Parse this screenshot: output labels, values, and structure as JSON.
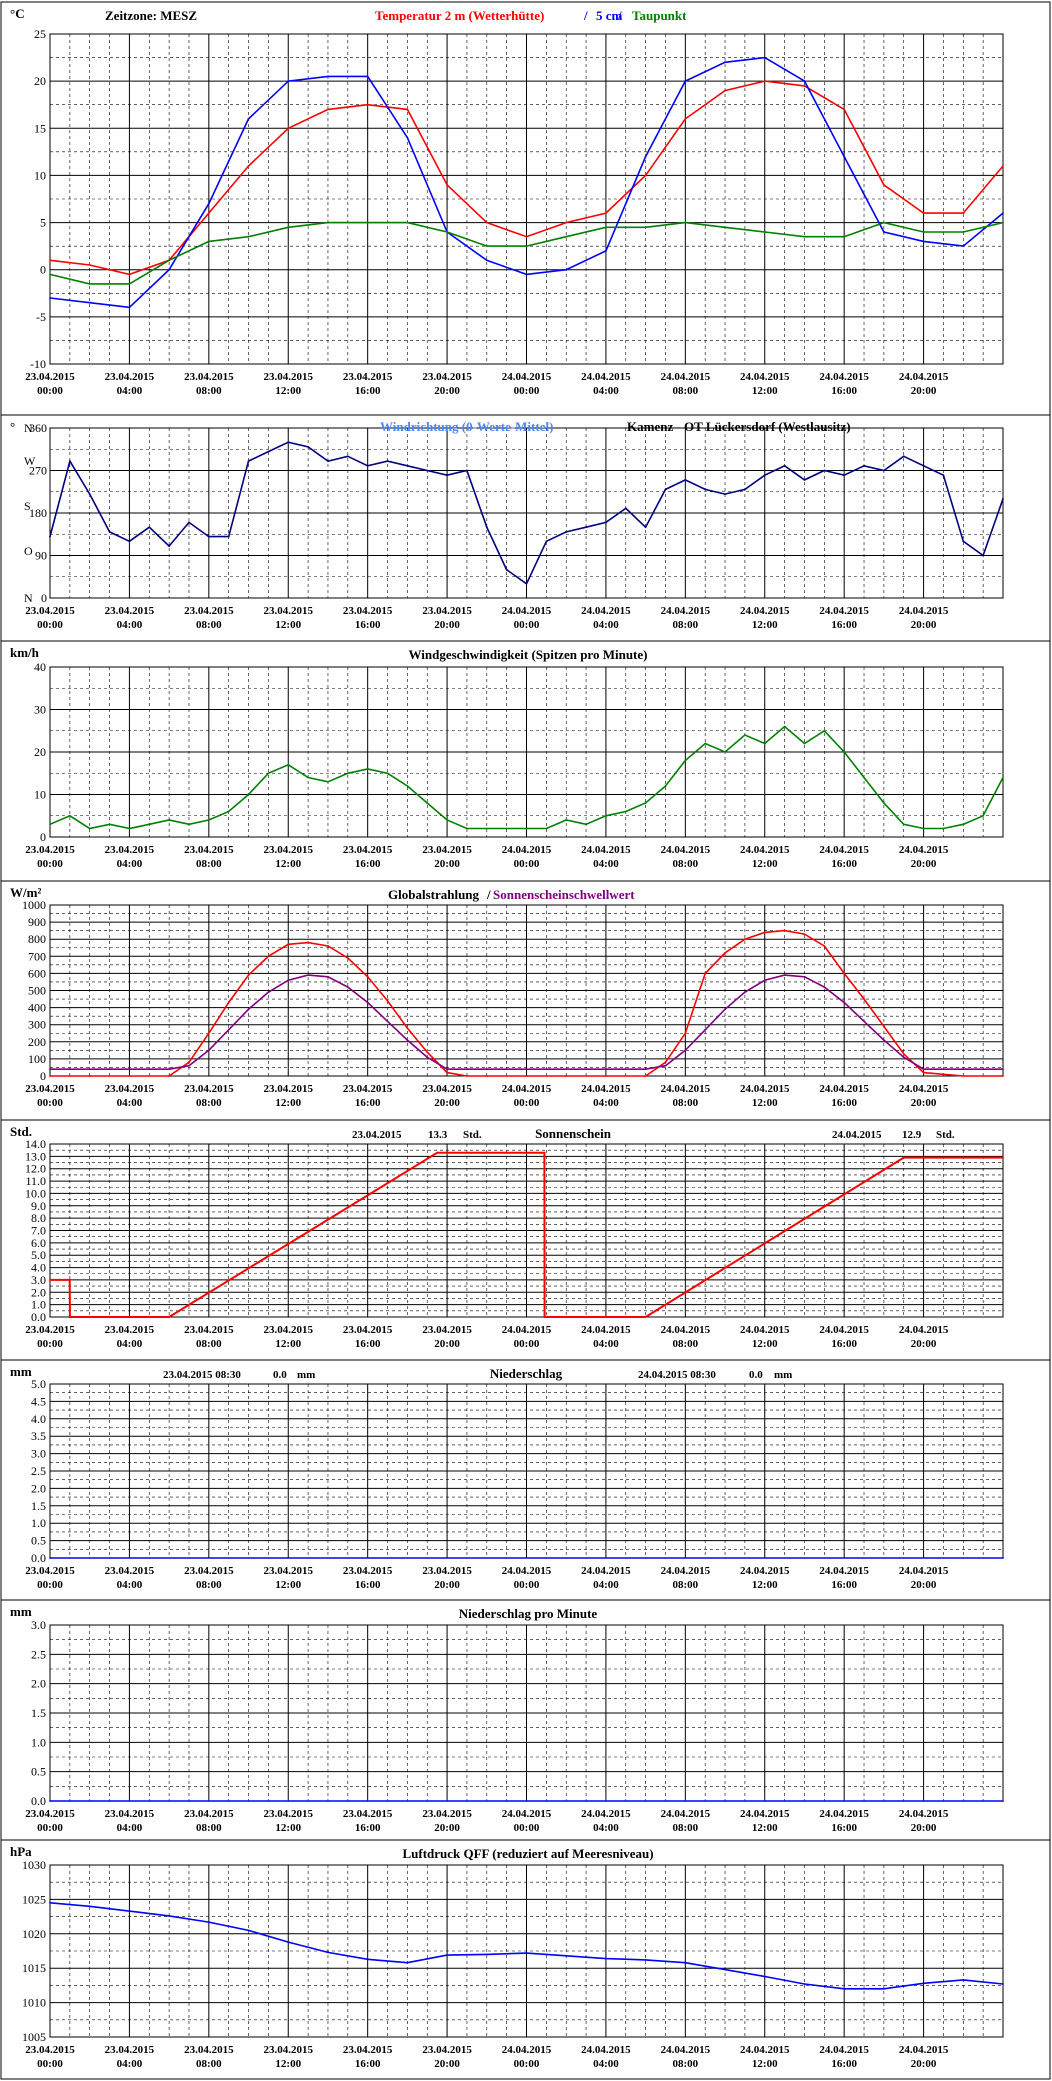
{
  "station": "Kamenz - OT Lückersdorf (Westlausitz)",
  "timezone_label": "Zeitzone: MESZ",
  "x_tick_labels": [
    [
      "23.04.2015",
      "00:00"
    ],
    [
      "23.04.2015",
      "04:00"
    ],
    [
      "23.04.2015",
      "08:00"
    ],
    [
      "23.04.2015",
      "12:00"
    ],
    [
      "23.04.2015",
      "16:00"
    ],
    [
      "23.04.2015",
      "20:00"
    ],
    [
      "24.04.2015",
      "00:00"
    ],
    [
      "24.04.2015",
      "04:00"
    ],
    [
      "24.04.2015",
      "08:00"
    ],
    [
      "24.04.2015",
      "12:00"
    ],
    [
      "24.04.2015",
      "16:00"
    ],
    [
      "24.04.2015",
      "20:00"
    ]
  ],
  "colors": {
    "red": "#ff0000",
    "blue": "#0000ff",
    "green": "#008000",
    "purple": "#800080",
    "lightblue": "#4a86ff",
    "navy": "#000080"
  },
  "chart_data": [
    {
      "id": "temperature",
      "type": "line",
      "unit": "°C",
      "title_parts": [
        "Temperatur 2 m (Wetterhütte)",
        "/",
        "5 cm",
        "/",
        "Taupunkt"
      ],
      "ylim": [
        -10,
        25
      ],
      "yticks": [
        -10,
        -5,
        0,
        5,
        10,
        15,
        20,
        25
      ],
      "x_hours": [
        0,
        2,
        4,
        6,
        8,
        10,
        12,
        14,
        16,
        18,
        20,
        22,
        24,
        26,
        28,
        30,
        32,
        34,
        36,
        38,
        40,
        42,
        44,
        46,
        48
      ],
      "series": [
        {
          "name": "Temperatur 2 m (Wetterhütte)",
          "color": "#ff0000",
          "values": [
            1,
            0.5,
            -0.5,
            1,
            6,
            11,
            15,
            17,
            17.5,
            17,
            9,
            5,
            3.5,
            5,
            6,
            10,
            16,
            19,
            20,
            19.5,
            17,
            9,
            6,
            6,
            11
          ]
        },
        {
          "name": "5 cm",
          "color": "#0000ff",
          "values": [
            -3,
            -3.5,
            -4,
            0,
            7,
            16,
            20,
            20.5,
            20.5,
            14,
            4,
            1,
            -0.5,
            0,
            2,
            12,
            20,
            22,
            22.5,
            20,
            12,
            4,
            3,
            2.5,
            6
          ]
        },
        {
          "name": "Taupunkt",
          "color": "#008000",
          "values": [
            -0.5,
            -1.5,
            -1.5,
            1,
            3,
            3.5,
            4.5,
            5,
            5,
            5,
            4,
            2.5,
            2.5,
            3.5,
            4.5,
            4.5,
            5,
            4.5,
            4,
            3.5,
            3.5,
            5,
            4,
            4,
            5
          ]
        }
      ]
    },
    {
      "id": "wind_direction",
      "type": "line",
      "unit": "°",
      "title_parts": [
        "Windrichtung (0-Werte-Mittel)"
      ],
      "ylim": [
        0,
        360
      ],
      "yticks": [
        0,
        90,
        180,
        270,
        360
      ],
      "ylabels": [
        {
          "v": 0,
          "t": "N"
        },
        {
          "v": 100,
          "t": "O"
        },
        {
          "v": 195,
          "t": "S"
        },
        {
          "v": 290,
          "t": "W"
        },
        {
          "v": 360,
          "t": "N"
        }
      ],
      "x_hours": [
        0,
        1,
        2,
        3,
        4,
        5,
        6,
        7,
        8,
        9,
        10,
        11,
        12,
        13,
        14,
        15,
        16,
        17,
        18,
        19,
        20,
        21,
        22,
        23,
        24,
        25,
        26,
        27,
        28,
        29,
        30,
        31,
        32,
        33,
        34,
        35,
        36,
        37,
        38,
        39,
        40,
        41,
        42,
        43,
        44,
        45,
        46,
        47,
        48
      ],
      "series": [
        {
          "name": "Windrichtung",
          "color": "#000080",
          "values": [
            130,
            290,
            220,
            140,
            120,
            150,
            110,
            160,
            130,
            130,
            290,
            310,
            330,
            320,
            290,
            300,
            280,
            290,
            280,
            270,
            260,
            270,
            150,
            60,
            30,
            120,
            140,
            150,
            160,
            190,
            150,
            230,
            250,
            230,
            220,
            230,
            260,
            280,
            250,
            270,
            260,
            280,
            270,
            300,
            280,
            260,
            120,
            90,
            210
          ]
        }
      ]
    },
    {
      "id": "wind_speed",
      "type": "line",
      "unit": "km/h",
      "title_parts": [
        "Windgeschwindigkeit (Spitzen pro Minute)"
      ],
      "ylim": [
        0,
        40
      ],
      "yticks": [
        0,
        10,
        20,
        30,
        40
      ],
      "x_hours": [
        0,
        1,
        2,
        3,
        4,
        5,
        6,
        7,
        8,
        9,
        10,
        11,
        12,
        13,
        14,
        15,
        16,
        17,
        18,
        19,
        20,
        21,
        22,
        23,
        24,
        25,
        26,
        27,
        28,
        29,
        30,
        31,
        32,
        33,
        34,
        35,
        36,
        37,
        38,
        39,
        40,
        41,
        42,
        43,
        44,
        45,
        46,
        47,
        48
      ],
      "series": [
        {
          "name": "Windgeschwindigkeit",
          "color": "#008000",
          "values": [
            3,
            5,
            2,
            3,
            2,
            3,
            4,
            3,
            4,
            6,
            10,
            15,
            17,
            14,
            13,
            15,
            16,
            15,
            12,
            8,
            4,
            2,
            2,
            2,
            2,
            2,
            4,
            3,
            5,
            6,
            8,
            12,
            18,
            22,
            20,
            24,
            22,
            26,
            22,
            25,
            20,
            14,
            8,
            3,
            2,
            2,
            3,
            5,
            14
          ]
        }
      ]
    },
    {
      "id": "global_radiation",
      "type": "line",
      "unit": "W/m²",
      "title_parts": [
        "Globalstrahlung",
        "/",
        "Sonnenscheinschwellwert"
      ],
      "ylim": [
        0,
        1000
      ],
      "yticks": [
        0,
        100,
        200,
        300,
        400,
        500,
        600,
        700,
        800,
        900,
        1000
      ],
      "x_hours": [
        0,
        2,
        4,
        6,
        7,
        8,
        9,
        10,
        11,
        12,
        13,
        14,
        15,
        16,
        17,
        18,
        19,
        20,
        21,
        22,
        24,
        26,
        28,
        30,
        31,
        32,
        33,
        34,
        35,
        36,
        37,
        38,
        39,
        40,
        41,
        42,
        43,
        44,
        46,
        48
      ],
      "series": [
        {
          "name": "Globalstrahlung",
          "color": "#ff0000",
          "values": [
            0,
            0,
            0,
            0,
            80,
            250,
            430,
            590,
            700,
            770,
            780,
            760,
            690,
            580,
            440,
            280,
            140,
            20,
            0,
            0,
            0,
            0,
            0,
            0,
            80,
            250,
            600,
            720,
            800,
            840,
            850,
            830,
            760,
            600,
            450,
            290,
            130,
            20,
            0,
            0
          ]
        },
        {
          "name": "Sonnenscheinschwellwert",
          "color": "#800080",
          "values": [
            40,
            40,
            40,
            40,
            60,
            150,
            270,
            390,
            490,
            560,
            590,
            580,
            520,
            430,
            320,
            210,
            110,
            40,
            40,
            40,
            40,
            40,
            40,
            40,
            60,
            150,
            270,
            390,
            490,
            560,
            590,
            580,
            520,
            430,
            320,
            210,
            110,
            40,
            40,
            40
          ]
        }
      ]
    },
    {
      "id": "sunshine",
      "type": "line",
      "unit": "Std.",
      "title_parts": [
        "Sonnenschein"
      ],
      "annotations": [
        [
          "23.04.2015",
          "13.3",
          "Std."
        ],
        [
          "24.04.2015",
          "12.9",
          "Std."
        ]
      ],
      "ylim": [
        0,
        14
      ],
      "yticks": [
        0,
        1,
        2,
        3,
        4,
        5,
        6,
        7,
        8,
        9,
        10,
        11,
        12,
        13,
        14
      ],
      "x_hours": [
        0,
        0.99,
        1,
        6,
        19.5,
        24.9,
        24.91,
        30,
        43,
        48
      ],
      "series": [
        {
          "name": "Sonnenschein",
          "color": "#ff0000",
          "values": [
            3.0,
            3.0,
            0,
            0,
            13.3,
            13.3,
            0,
            0,
            12.9,
            12.9
          ]
        }
      ]
    },
    {
      "id": "precipitation",
      "type": "line",
      "unit": "mm",
      "title_parts": [
        "Niederschlag"
      ],
      "annotations": [
        [
          "23.04.2015 08:30",
          "0.0",
          "mm"
        ],
        [
          "24.04.2015 08:30",
          "0.0",
          "mm"
        ]
      ],
      "ylim": [
        0,
        5
      ],
      "yticks": [
        0,
        0.5,
        1,
        1.5,
        2,
        2.5,
        3,
        3.5,
        4,
        4.5,
        5
      ],
      "x_hours": [
        0,
        48
      ],
      "series": [
        {
          "name": "Niederschlag",
          "color": "#0000ff",
          "values": [
            0,
            0
          ]
        }
      ]
    },
    {
      "id": "precipitation_per_minute",
      "type": "line",
      "unit": "mm",
      "title_parts": [
        "Niederschlag pro Minute"
      ],
      "ylim": [
        0,
        3
      ],
      "yticks": [
        0,
        0.5,
        1,
        1.5,
        2,
        2.5,
        3
      ],
      "x_hours": [
        0,
        48
      ],
      "series": [
        {
          "name": "Niederschlag pro Minute",
          "color": "#0000ff",
          "values": [
            0,
            0
          ]
        }
      ]
    },
    {
      "id": "pressure",
      "type": "line",
      "unit": "hPa",
      "title_parts": [
        "Luftdruck QFF (reduziert auf Meeresniveau)"
      ],
      "ylim": [
        1005,
        1030
      ],
      "yticks": [
        1005,
        1010,
        1015,
        1020,
        1025,
        1030
      ],
      "x_hours": [
        0,
        2,
        4,
        6,
        8,
        10,
        12,
        14,
        16,
        18,
        20,
        22,
        24,
        26,
        28,
        30,
        32,
        34,
        36,
        38,
        40,
        42,
        44,
        46,
        48
      ],
      "series": [
        {
          "name": "Luftdruck QFF",
          "color": "#0000ff",
          "values": [
            1024.5,
            1024,
            1023.3,
            1022.6,
            1021.7,
            1020.5,
            1018.8,
            1017.3,
            1016.3,
            1015.8,
            1016.9,
            1017,
            1017.2,
            1016.8,
            1016.4,
            1016.2,
            1015.8,
            1014.8,
            1013.8,
            1012.7,
            1012,
            1012,
            1012.8,
            1013.3,
            1012.7
          ]
        }
      ]
    }
  ]
}
